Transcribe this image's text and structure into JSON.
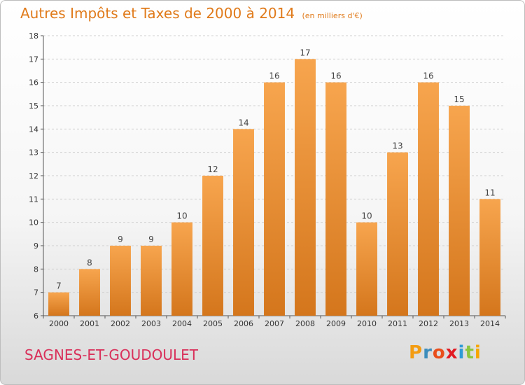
{
  "header": {
    "title": "Autres Impôts et Taxes de 2000 à 2014",
    "unit": "(en milliers d'€)"
  },
  "footer": {
    "commune": "SAGNES-ET-GOUDOULET",
    "logo": {
      "letters": [
        "P",
        "r",
        "o",
        "x",
        "i",
        "t",
        "i"
      ],
      "colors": [
        "#f39c12",
        "#3c8dbc",
        "#e94e1b",
        "#e21b23",
        "#2e9bd6",
        "#8cc63f",
        "#f7a600"
      ]
    }
  },
  "chart_data": {
    "type": "bar",
    "categories": [
      "2000",
      "2001",
      "2002",
      "2003",
      "2004",
      "2005",
      "2006",
      "2007",
      "2008",
      "2009",
      "2010",
      "2011",
      "2012",
      "2013",
      "2014"
    ],
    "values": [
      7,
      8,
      9,
      9,
      10,
      12,
      14,
      16,
      17,
      16,
      10,
      13,
      16,
      15,
      11
    ],
    "title": "Autres Impôts et Taxes de 2000 à 2014",
    "ylim": [
      6,
      18
    ],
    "yticks": [
      6,
      7,
      8,
      9,
      10,
      11,
      12,
      13,
      14,
      15,
      16,
      17,
      18
    ],
    "bar_color_top": "#f7a54e",
    "bar_color_bottom": "#d4761c",
    "grid": true
  }
}
